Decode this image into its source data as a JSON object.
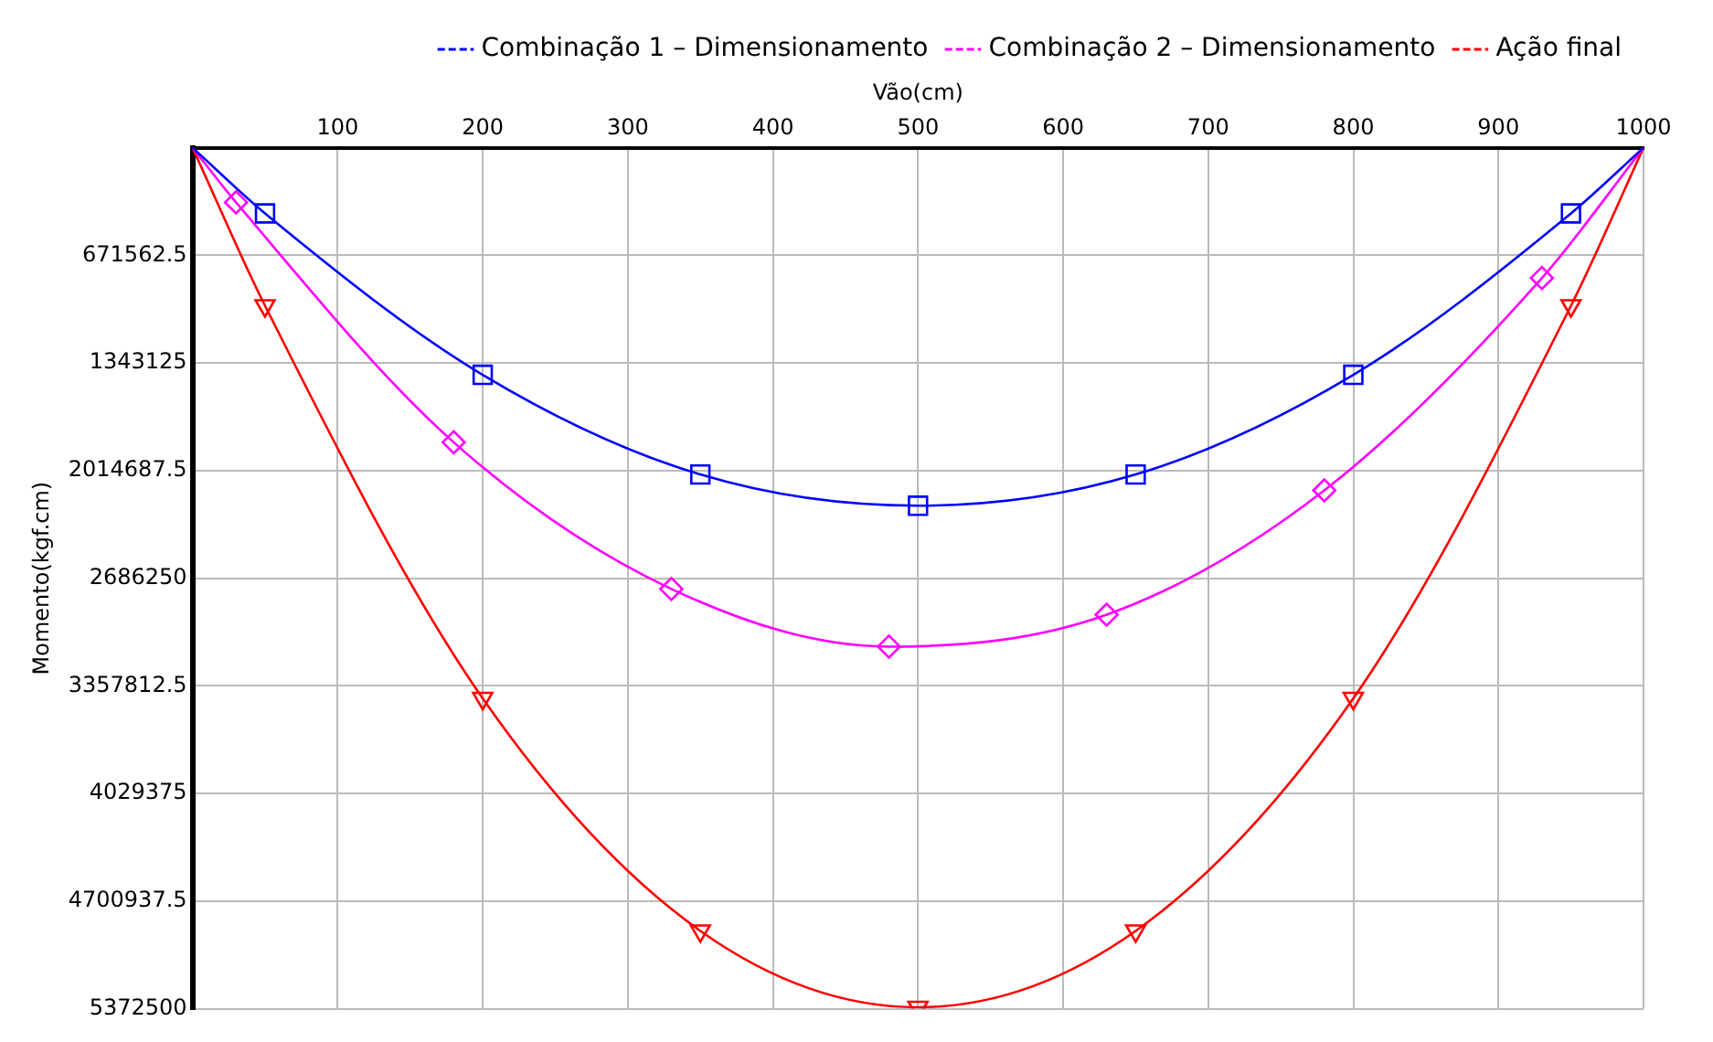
{
  "chart_data": {
    "type": "line",
    "xlabel": "Vão(cm)",
    "ylabel": "Momento(kgf.cm)",
    "xlim": [
      0,
      1000
    ],
    "xticks": [
      {
        "value": 0,
        "label": null
      },
      100,
      200,
      300,
      400,
      500,
      600,
      700,
      800,
      900,
      1000
    ],
    "ylim": [
      5372500,
      0
    ],
    "yticks": [
      {
        "value": 0,
        "label": null
      },
      671562.5,
      1343125,
      2014687.5,
      2686250,
      3357812.5,
      4029375,
      4700937.5,
      5372500
    ],
    "grid": true,
    "legend": "top",
    "series": [
      {
        "name": "Combinação 1 – Dimensionamento",
        "color": "#0000ff",
        "marker": "square",
        "x": [
          0,
          50,
          200,
          350,
          500,
          650,
          800,
          950,
          1000
        ],
        "values": [
          0,
          410000,
          1417000,
          2039000,
          2234000,
          2039000,
          1417000,
          410000,
          0
        ]
      },
      {
        "name": "Combinação 2 – Dimensionamento",
        "color": "#ff00ff",
        "marker": "diamond",
        "x": [
          0,
          30,
          180,
          330,
          480,
          630,
          780,
          930,
          1000
        ],
        "values": [
          0,
          341000,
          1838000,
          2753000,
          3113000,
          2914000,
          2138000,
          813000,
          0
        ]
      },
      {
        "name": "Ação final",
        "color": "#ff0000",
        "marker": "triangle",
        "x": [
          0,
          50,
          200,
          350,
          500,
          650,
          800,
          950,
          1000
        ],
        "values": [
          0,
          986000,
          3436000,
          4887000,
          5363000,
          4887000,
          3436000,
          986000,
          0
        ]
      }
    ]
  }
}
